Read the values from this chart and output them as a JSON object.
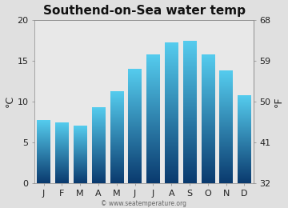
{
  "title": "Southend-on-Sea water temp",
  "months": [
    "J",
    "F",
    "M",
    "A",
    "M",
    "J",
    "J",
    "A",
    "S",
    "O",
    "N",
    "D"
  ],
  "values_c": [
    7.7,
    7.4,
    7.0,
    9.2,
    11.2,
    13.9,
    15.7,
    17.2,
    17.4,
    15.7,
    13.7,
    10.7
  ],
  "ylim_c": [
    0,
    20
  ],
  "yticks_c": [
    0,
    5,
    10,
    15,
    20
  ],
  "yticks_f": [
    32,
    41,
    50,
    59,
    68
  ],
  "ylabel_left": "°C",
  "ylabel_right": "°F",
  "bar_color_top": "#55ccee",
  "bar_color_bottom": "#0a3a6e",
  "bg_color": "#e0e0e0",
  "plot_bg_color": "#e8e8e8",
  "title_fontsize": 11,
  "tick_fontsize": 8,
  "label_fontsize": 9,
  "watermark": "© www.seatemperature.org",
  "watermark_fontsize": 5.5,
  "bar_width": 0.72,
  "figsize": [
    3.6,
    2.6
  ],
  "dpi": 100
}
